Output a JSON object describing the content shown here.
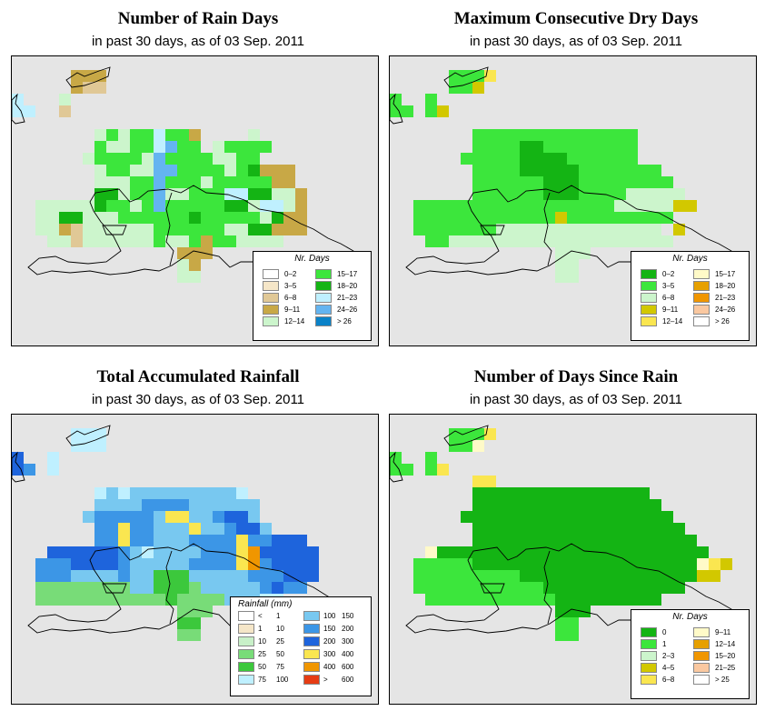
{
  "panels": [
    {
      "id": "rain-days",
      "title": "Number of Rain Days",
      "subtitle": "in past 30 days, as of  03 Sep. 2011",
      "legend_title": "Nr. Days",
      "legend": [
        {
          "label": "0–2",
          "color": "#ffffff"
        },
        {
          "label": "3–5",
          "color": "#f5e6c8"
        },
        {
          "label": "6–8",
          "color": "#e0c896"
        },
        {
          "label": "9–11",
          "color": "#c8a846"
        },
        {
          "label": "12–14",
          "color": "#ccf5cc"
        },
        {
          "label": "15–17",
          "color": "#3ce63c"
        },
        {
          "label": "18–20",
          "color": "#14b414"
        },
        {
          "label": "21–23",
          "color": "#bff0ff"
        },
        {
          "label": "24–26",
          "color": "#64b4f0"
        },
        {
          "label": "> 26",
          "color": "#0a82c8"
        }
      ],
      "palette": [
        "#ccf5cc",
        "#3ce63c",
        "#14b414",
        "#c8a846",
        "#e0c896",
        "#64b4f0",
        "#bff0ff"
      ],
      "grid": [
        "...............................",
        ".....DDD.......................",
        ".....DEE.......................",
        "G...A..........................",
        "GG..E..........................",
        "...............................",
        ".......ABABBGBBD....A..........",
        ".......BAABBGFBB.ABBBB.........",
        "......ABBBBAFBBBBAABB..........",
        ".......ABBAAFFBBBBABCDDD.......",
        ".......AAABBFBBBABBBBBDD.......",
        ".......CCABBFAABBBGGCCAAD......",
        "..AAAAACBBABFBBBBBCCAGGAD......",
        "..AACCAAABBBBBBCBBBBBACDD......",
        "..AADEAAAAAABBBBBBAACCDDD......",
        "...AAEAAAAAABAABDBBAAAA........",
        "..............DDD..............",
        "..............AD...............",
        "..............AA...............",
        "..............................."
      ]
    },
    {
      "id": "max-dry-days",
      "title": "Maximum Consecutive Dry Days",
      "subtitle": "in past 30 days, as of  03 Sep. 2011",
      "legend_title": "Nr. Days",
      "legend": [
        {
          "label": "0–2",
          "color": "#14b414"
        },
        {
          "label": "3–5",
          "color": "#3ce63c"
        },
        {
          "label": "6–8",
          "color": "#ccf5cc"
        },
        {
          "label": "9–11",
          "color": "#d2c800"
        },
        {
          "label": "12–14",
          "color": "#fae650"
        },
        {
          "label": "15–17",
          "color": "#fffac8"
        },
        {
          "label": "18–20",
          "color": "#e6a000"
        },
        {
          "label": "21–23",
          "color": "#f09600"
        },
        {
          "label": "24–26",
          "color": "#fac8a0"
        },
        {
          "label": "> 26",
          "color": "#ffffff"
        }
      ],
      "palette": [
        "#ccf5cc",
        "#3ce63c",
        "#14b414",
        "#d2c800",
        "#fae650"
      ],
      "grid": [
        "...............................",
        ".....BBBE......................",
        ".....BBD.......................",
        "B..B...........................",
        "BB.BD..........................",
        "...............................",
        ".......BBBBBBBBBBBBBB..........",
        ".......BBBBCCBBBBBBBB..........",
        "......BBBBBCCCCBBBBBB..........",
        ".......BBBBCCCCCBBBBBBB........",
        ".......BBBBBBCCCBBBBBBBB.......",
        ".......BBBBBBCCCBBBBAAAAA......",
        "..BBBBBBBBBBBBBBBBBAAAAADD.....",
        "..BBBBBBBBBBBBDBBBBBBBBB.......",
        "..BBBBBBBAAAAAAAAAAAAAA.D......",
        "...BBAAAAAAAAAAAAAAAAAAA.......",
        "..............AAA..............",
        "..............AA...............",
        "..............AA...............",
        "..............................."
      ]
    },
    {
      "id": "total-rainfall",
      "title": "Total Accumulated Rainfall",
      "subtitle": "in past 30 days, as of  03 Sep. 2011",
      "legend_title": "Rainfall (mm)",
      "legend": [
        {
          "lo": "<",
          "hi": "1",
          "color": "#ffffff"
        },
        {
          "lo": "1",
          "hi": "10",
          "color": "#f5e6c8"
        },
        {
          "lo": "10",
          "hi": "25",
          "color": "#c8f0c8"
        },
        {
          "lo": "25",
          "hi": "50",
          "color": "#78dc78"
        },
        {
          "lo": "50",
          "hi": "75",
          "color": "#3cc83c"
        },
        {
          "lo": "75",
          "hi": "100",
          "color": "#bff0ff"
        },
        {
          "lo": "100",
          "hi": "150",
          "color": "#78c8f0"
        },
        {
          "lo": "150",
          "hi": "200",
          "color": "#3c96e6"
        },
        {
          "lo": "200",
          "hi": "300",
          "color": "#1e64dc"
        },
        {
          "lo": "300",
          "hi": "400",
          "color": "#fae650"
        },
        {
          "lo": "400",
          "hi": "600",
          "color": "#f09600"
        },
        {
          "lo": ">",
          "hi": "600",
          "color": "#e63c14"
        }
      ],
      "palette": [
        "#bff0ff",
        "#78c8f0",
        "#3c96e6",
        "#1e64dc",
        "#78dc78",
        "#3cc83c",
        "#fae650",
        "#f09600"
      ],
      "grid": [
        "...............................",
        ".....AAA.......................",
        ".....AAA.......................",
        "D..A...........................",
        "DC.A...........................",
        "...............................",
        ".......ABABBBBBBBBBA...........",
        ".......BBBBCCCCBBBBBB..........",
        "......BCCCCCBGGBBCDDB..........",
        ".......CCGCCBBBGBBCDDB.........",
        ".......CCGCCBBBCCCCGCCDDD......",
        "...DDDDDDCBABBBBCCCGHDDDDD.....",
        "..CCCDDDDCBBBBBCCCCGHCDDDD.....",
        "..CCCBBBBCBBFFFBBBBBCCCDDD.....",
        "..EEEEEEEEBBFFFEBBBBBCDCC......",
        "..EEEEEEEEEEEFEEEEBBBAA........",
        "..............EEE..............",
        "..............FF...............",
        "..............EE...............",
        "..............................."
      ]
    },
    {
      "id": "days-since-rain",
      "title": "Number of Days Since Rain",
      "subtitle": "in past 30 days, as of  03 Sep. 2011",
      "legend_title": "Nr. Days",
      "legend": [
        {
          "label": "0",
          "color": "#14b414"
        },
        {
          "label": "1",
          "color": "#3ce63c"
        },
        {
          "label": "2–3",
          "color": "#ccf5cc"
        },
        {
          "label": "4–5",
          "color": "#d2c800"
        },
        {
          "label": "6–8",
          "color": "#fae650"
        },
        {
          "label": "9–11",
          "color": "#fffac8"
        },
        {
          "label": "12–14",
          "color": "#e6a000"
        },
        {
          "label": "15–20",
          "color": "#f09600"
        },
        {
          "label": "21–25",
          "color": "#fac8a0"
        },
        {
          "label": "> 25",
          "color": "#ffffff"
        }
      ],
      "palette": [
        "#14b414",
        "#3ce63c",
        "#d2c800",
        "#fae650",
        "#fffac8",
        "#ccf5cc"
      ],
      "grid": [
        "...............................",
        ".....BBBD......................",
        ".....BBE.......................",
        "B..B...........................",
        "BB.BD..........................",
        ".......DD......................",
        ".......AAAAAAAAAAAAAAA.........",
        ".......AAAAAAAAAAAAAAAA........",
        "......AAAAAAAAAAAAAAAAAA.......",
        ".......AAAAAAAAAAAAAAAAAA......",
        ".......AAAAAAAAAAAAAAAAAAA.....",
        "...EAAAAAAAAAAAAAAAAAAAAAAA....",
        "..BBBBBAAAAAAAAAAAAAAAAAAAEDC..",
        "..BBBBBBBBBAAAAAAAAAAAAAAACC...",
        "..BBBBBBBBBBBAAAAAAAAAAAA......",
        "...BBBBBBBBBBBAAAAAAAAA........",
        "..............AAA..............",
        "..............BB...............",
        "..............BB...............",
        "..............................."
      ]
    }
  ]
}
